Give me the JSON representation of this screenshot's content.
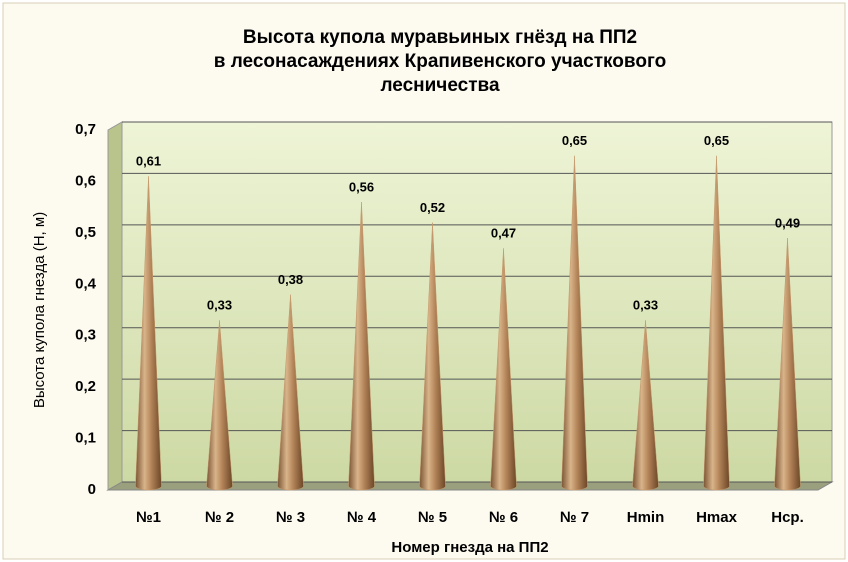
{
  "chart_data": {
    "type": "cone",
    "title": [
      "Высота купола муравьиных гнёзд на ПП2",
      "в лесонасаждениях Крапивенского участкового",
      "лесничества"
    ],
    "x_label": "Номер гнезда на ПП2",
    "y_label": "Высота купола гнезда (Н, м)",
    "categories": [
      "№1",
      "№ 2",
      "№ 3",
      "№ 4",
      "№ 5",
      "№ 6",
      "№ 7",
      "Hmin",
      "Hmax",
      "Hср."
    ],
    "values": [
      0.61,
      0.33,
      0.38,
      0.56,
      0.52,
      0.47,
      0.65,
      0.33,
      0.65,
      0.49
    ],
    "value_labels": [
      "0,61",
      "0,33",
      "0,38",
      "0,56",
      "0,52",
      "0,47",
      "0,65",
      "0,33",
      "0,65",
      "0,49"
    ],
    "color": "#c49a6c",
    "ylim": [
      0,
      0.7
    ],
    "yticks": [
      0,
      {
        "value": 0.1,
        "label": "0,1"
      },
      {
        "value": 0.2,
        "label": "0,2"
      },
      {
        "value": 0.3,
        "label": "0,3"
      },
      {
        "value": 0.4,
        "label": "0,4"
      },
      {
        "value": 0.5,
        "label": "0,5"
      },
      {
        "value": 0.6,
        "label": "0,6"
      },
      {
        "value": 0.7,
        "label": "0,7"
      }
    ],
    "grid": true
  }
}
